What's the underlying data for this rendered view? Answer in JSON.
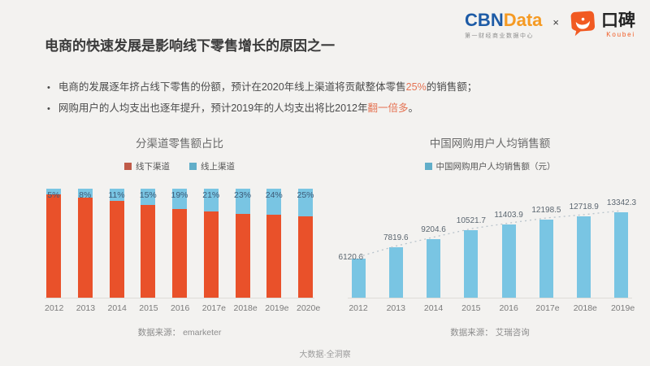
{
  "page": {
    "title": "电商的快速发展是影响线下零售增长的原因之一",
    "bullet_marker": "•",
    "footer": "大数据·全洞察"
  },
  "header": {
    "cbndata": {
      "cbn": "CBN",
      "data": "Data",
      "subtitle": "第一财经商业数据中心"
    },
    "separator": "×",
    "koubei": {
      "name": "口碑",
      "latin": "Koubei"
    }
  },
  "bullets": [
    {
      "pre": "电商的发展逐年挤占线下零售的份额，预计在2020年线上渠道将贡献整体零售",
      "highlight": "25%",
      "post": "的销售额；"
    },
    {
      "pre": "网购用户的人均支出也逐年提升，预计2019年的人均支出将比2012年",
      "highlight": "翻一倍多",
      "post": "。"
    }
  ],
  "colors": {
    "offline_bar": "#e9512a",
    "online_bar": "#79c5e3",
    "legend_offline": "#c05b49",
    "legend_online": "#61aec9",
    "highlight": "#e57353",
    "pct_label": "#3d5a76",
    "value_label": "#5b6670",
    "trendline": "#b8c3cb",
    "cbn_blue": "#1d5ba6",
    "cbn_orange": "#f59a23",
    "koubei_orange": "#f15a22"
  },
  "chart_data": [
    {
      "type": "bar",
      "variant": "stacked-percent",
      "title": "分渠道零售额占比",
      "categories": [
        "2012",
        "2013",
        "2014",
        "2015",
        "2016",
        "2017e",
        "2018e",
        "2019e",
        "2020e"
      ],
      "series": [
        {
          "name": "线下渠道",
          "color": "#e9512a",
          "values": [
            95,
            92,
            89,
            85,
            81,
            79,
            77,
            76,
            75
          ]
        },
        {
          "name": "线上渠道",
          "color": "#79c5e3",
          "values": [
            5,
            8,
            11,
            15,
            19,
            21,
            23,
            24,
            25
          ]
        }
      ],
      "labels": [
        "5%",
        "8%",
        "11%",
        "15%",
        "19%",
        "21%",
        "23%",
        "24%",
        "25%"
      ],
      "ylim": [
        0,
        100
      ],
      "legend_position": "top",
      "grid": false,
      "source": "数据来源： emarketer"
    },
    {
      "type": "bar",
      "title": "中国网购用户人均销售额",
      "categories": [
        "2012",
        "2013",
        "2014",
        "2015",
        "2016",
        "2017e",
        "2018e",
        "2019e"
      ],
      "series": [
        {
          "name": "中国网购用户人均销售额（元）",
          "color": "#79c5e3",
          "values": [
            6120.6,
            7819.6,
            9204.6,
            10521.7,
            11403.9,
            12198.5,
            12718.9,
            13342.3
          ]
        }
      ],
      "trendline": true,
      "ylim": [
        0,
        14000
      ],
      "legend_position": "top",
      "grid": false,
      "source": "数据来源： 艾瑞咨询"
    }
  ]
}
